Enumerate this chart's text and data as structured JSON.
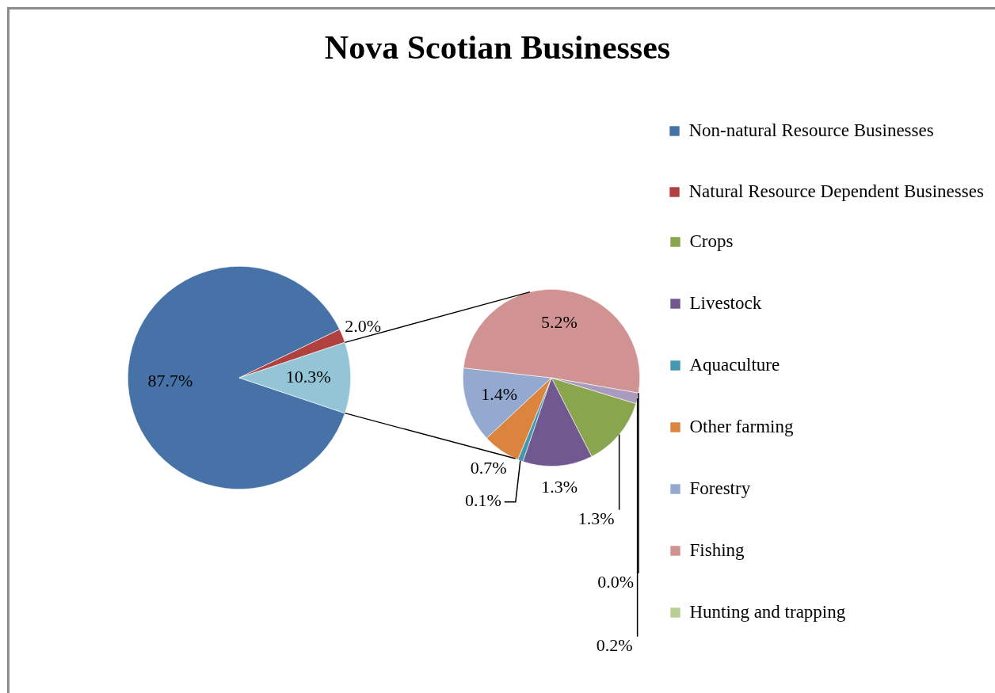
{
  "chart_data": [
    {
      "type": "pie",
      "title": "Nova Scotian Businesses",
      "categories": [
        "Non-natural Resource Businesses",
        "Natural Resource Dependent Businesses",
        null
      ],
      "values": [
        87.7,
        2.0,
        10.3
      ],
      "colors": [
        "#4672a8",
        "#b0413e",
        "#93c5d6"
      ],
      "value_labels": [
        "87.7%",
        "2.0%",
        "10.3%"
      ],
      "legend": "right"
    },
    {
      "type": "pie",
      "categories": [
        "Crops",
        "Livestock",
        "Aquaculture",
        "Other farming",
        "Forestry",
        "Fishing",
        "Hunting and trapping",
        null
      ],
      "values": [
        1.3,
        1.3,
        0.1,
        0.7,
        1.4,
        5.2,
        0.0,
        0.2
      ],
      "colors": [
        "#89a54e",
        "#71588f",
        "#4198af",
        "#db843d",
        "#93a9d0",
        "#d09392",
        "#b9cd96",
        "#a99bbd"
      ],
      "value_labels": [
        "1.3%",
        "1.3%",
        "0.1%",
        "0.7%",
        "1.4%",
        "5.2%",
        "0.0%",
        "0.2%"
      ],
      "legend": "right"
    }
  ]
}
